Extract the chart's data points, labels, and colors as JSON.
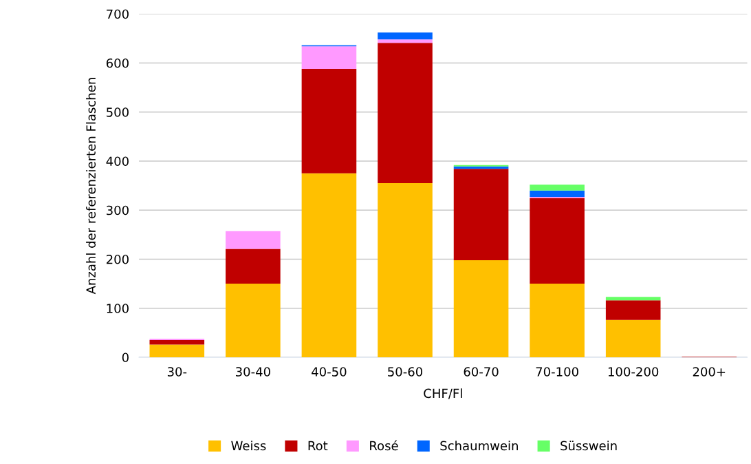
{
  "chart_data": {
    "type": "bar",
    "stacked": true,
    "xlabel": "CHF/Fl",
    "ylabel": "Anzahl der referenzierten Flaschen",
    "categories": [
      "30-",
      "30-40",
      "40-50",
      "50-60",
      "60-70",
      "70-100",
      "100-200",
      "200+"
    ],
    "series": [
      {
        "name": "Weiss",
        "color": "#ffc000",
        "values": [
          26,
          150,
          375,
          355,
          198,
          150,
          76,
          0
        ]
      },
      {
        "name": "Rot",
        "color": "#c00000",
        "values": [
          9,
          71,
          213,
          286,
          186,
          175,
          40,
          1
        ]
      },
      {
        "name": "Rosé",
        "color": "#ff99ff",
        "values": [
          3,
          36,
          46,
          7,
          0,
          2,
          0,
          0
        ]
      },
      {
        "name": "Schaumwein",
        "color": "#0066ff",
        "values": [
          0,
          0,
          2,
          14,
          5,
          13,
          0,
          0
        ]
      },
      {
        "name": "Süsswein",
        "color": "#66ff66",
        "values": [
          0,
          0,
          0,
          0,
          3,
          12,
          7,
          0
        ]
      }
    ],
    "ylim": [
      0,
      700
    ],
    "yticks": [
      0,
      100,
      200,
      300,
      400,
      500,
      600,
      700
    ],
    "grid": "y",
    "legend": "bottom"
  }
}
